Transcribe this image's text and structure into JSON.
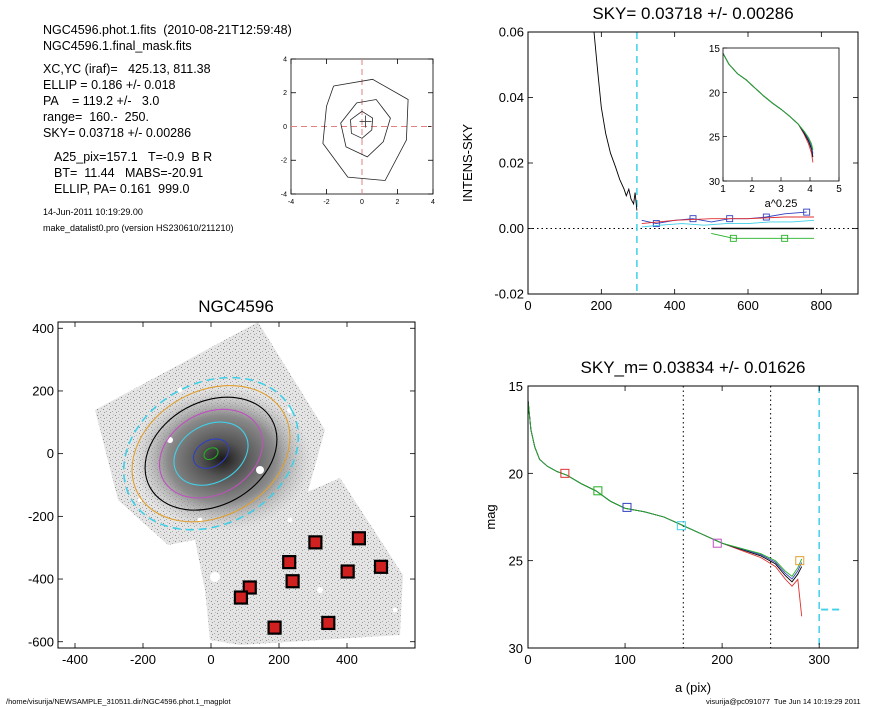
{
  "header": {
    "line1": "NGC4596.phot.1.fits  (2010-08-21T12:59:48)",
    "line2": "NGC4596.1.final_mask.fits",
    "xcyc": "XC,YC (iraf)=   425.13, 811.38",
    "ellip": "ELLIP = 0.186 +/- 0.018",
    "pa": "PA    = 119.2 +/-   3.0",
    "range": "range=  160.-  250.",
    "sky": "SKY= 0.03718 +/- 0.00286",
    "a25": "A25_pix=157.1   T=-0.9  B R",
    "bt": "BT=  11.44   MABS=-20.91",
    "ellip_pa": "ELLIP, PA= 0.161  999.0",
    "date": "14-Jun-2011 10:19:29.00",
    "prog": "make_datalist0.pro (version HS230610/211210)"
  },
  "footer": {
    "path": "/home/visurija/NEWSAMPLE_310511.dir/NGC4596.phot.1_magplot",
    "user": "visurija@pc091077  Tue Jun 14 10:19:29 2011"
  },
  "colors": {
    "black": "#000000",
    "red": "#e03030",
    "green": "#22b022",
    "blue": "#3040c0",
    "cyan": "#40d0e8",
    "magenta": "#c050c0",
    "orange": "#e0a030",
    "pink": "#e08080"
  },
  "chart_data": [
    {
      "id": "center",
      "type": "line",
      "title": "",
      "xlim": [
        -4,
        4
      ],
      "ylim": [
        -4,
        4
      ],
      "xticks": [
        -4,
        -2,
        0,
        2,
        4
      ],
      "yticks": [
        -4,
        -2,
        0,
        2,
        4
      ],
      "xtick_labels": [
        "-4",
        "-2",
        "0",
        "2",
        "4"
      ],
      "ytick_labels": [
        "-4",
        "-2",
        "0",
        "2",
        "4"
      ],
      "contours": [
        [
          [
            0,
            0.9
          ],
          [
            0.6,
            0.5
          ],
          [
            0.55,
            -0.2
          ],
          [
            0,
            -0.7
          ],
          [
            -0.6,
            -0.4
          ],
          [
            -0.65,
            0.4
          ],
          [
            0,
            0.9
          ]
        ],
        [
          [
            -0.3,
            1.4
          ],
          [
            0.8,
            1.6
          ],
          [
            1.6,
            0.5
          ],
          [
            1.2,
            -0.9
          ],
          [
            0.3,
            -1.8
          ],
          [
            -0.9,
            -1.2
          ],
          [
            -1.2,
            0.2
          ],
          [
            -0.3,
            1.4
          ]
        ],
        [
          [
            -1.6,
            2.4
          ],
          [
            0.6,
            2.8
          ],
          [
            2.6,
            1.6
          ],
          [
            2.5,
            -0.8
          ],
          [
            1.3,
            -3.2
          ],
          [
            -0.8,
            -3.0
          ],
          [
            -2.2,
            -1.0
          ],
          [
            -2.0,
            1.2
          ],
          [
            -1.6,
            2.4
          ]
        ]
      ],
      "marker": [
        0.2,
        0.3
      ]
    },
    {
      "id": "image",
      "type": "scatter",
      "title": "NGC4596",
      "xlim": [
        -450,
        600
      ],
      "ylim": [
        -620,
        420
      ],
      "xticks": [
        -400,
        -200,
        0,
        200,
        400
      ],
      "yticks": [
        -600,
        -400,
        -200,
        0,
        200,
        400
      ],
      "xtick_labels": [
        "-400",
        "-200",
        "0",
        "200",
        "400"
      ],
      "ytick_labels": [
        "-600",
        "-400",
        "-200",
        "0",
        "200",
        "400"
      ],
      "ellipses": [
        {
          "a": 22,
          "b": 17,
          "pa": 119,
          "color": "green"
        },
        {
          "a": 55,
          "b": 42,
          "pa": 119,
          "color": "blue"
        },
        {
          "a": 115,
          "b": 92,
          "pa": 119,
          "color": "cyan"
        },
        {
          "a": 160,
          "b": 130,
          "pa": 119,
          "color": "magenta"
        },
        {
          "a": 205,
          "b": 165,
          "pa": 119,
          "color": "black"
        },
        {
          "a": 245,
          "b": 200,
          "pa": 119,
          "color": "orange"
        },
        {
          "a": 270,
          "b": 225,
          "pa": 119,
          "color": "cyan"
        }
      ],
      "boxes": [
        [
          307,
          -283
        ],
        [
          435,
          -270
        ],
        [
          230,
          -346
        ],
        [
          500,
          -361
        ],
        [
          402,
          -376
        ],
        [
          240,
          -407
        ],
        [
          114,
          -427
        ],
        [
          88,
          -459
        ],
        [
          345,
          -540
        ],
        [
          187,
          -555
        ]
      ]
    },
    {
      "id": "intens",
      "type": "line",
      "title": "SKY= 0.03718 +/- 0.00286",
      "ylabel": "INTENS-SKY",
      "xlim": [
        0,
        900
      ],
      "ylim": [
        -0.02,
        0.06
      ],
      "xticks": [
        0,
        200,
        400,
        600,
        800
      ],
      "yticks": [
        -0.02,
        0.0,
        0.02,
        0.04,
        0.06
      ],
      "xtick_labels": [
        "0",
        "200",
        "400",
        "600",
        "800"
      ],
      "ytick_labels": [
        "-0.02",
        "0.00",
        "0.02",
        "0.04",
        "0.06"
      ],
      "vline": 297,
      "series": [
        {
          "color": "black",
          "x": [
            180,
            190,
            200,
            212,
            225,
            238,
            250,
            262,
            268,
            275,
            281,
            288,
            292,
            297
          ],
          "y": [
            0.06,
            0.048,
            0.037,
            0.029,
            0.023,
            0.019,
            0.015,
            0.012,
            0.01,
            0.012,
            0.009,
            0.0075,
            0.011,
            0.0055
          ]
        },
        {
          "color": "blue",
          "x": [
            310,
            350,
            400,
            450,
            500,
            550,
            600,
            650,
            700,
            760
          ],
          "y": [
            0.0025,
            0.0015,
            0.0025,
            0.003,
            0.002,
            0.003,
            0.003,
            0.0035,
            0.0045,
            0.005
          ]
        },
        {
          "color": "cyan",
          "x": [
            310,
            360,
            420,
            480,
            540,
            600,
            660,
            720,
            780
          ],
          "y": [
            0.0005,
            0.001,
            0.0015,
            0.001,
            0.0015,
            0.0015,
            0.002,
            0.002,
            0.0025
          ]
        },
        {
          "color": "red",
          "x": [
            310,
            400,
            500,
            600,
            700,
            780
          ],
          "y": [
            0.0015,
            0.0025,
            0.003,
            0.003,
            0.0035,
            0.0035
          ]
        },
        {
          "color": "black",
          "x": [
            500,
            780
          ],
          "y": [
            0.0,
            0.0
          ]
        },
        {
          "color": "green",
          "x": [
            500,
            560,
            620,
            700,
            780
          ],
          "y": [
            -0.0015,
            -0.003,
            -0.003,
            -0.003,
            -0.003
          ]
        }
      ],
      "inset": {
        "xlabel": "a^0.25",
        "xlim": [
          1,
          5
        ],
        "ylim": [
          15,
          30
        ],
        "xticks": [
          1,
          2,
          3,
          4,
          5
        ],
        "yticks": [
          15,
          20,
          25,
          30
        ],
        "xtick_labels": [
          "1",
          "2",
          "3",
          "4",
          "5"
        ],
        "ytick_labels": [
          "15",
          "20",
          "25",
          "30"
        ],
        "x": [
          1.0,
          1.2,
          1.5,
          1.8,
          2.1,
          2.4,
          2.7,
          3.0,
          3.3,
          3.6,
          3.8,
          3.95,
          4.05,
          4.1
        ],
        "y": [
          15.6,
          16.8,
          17.9,
          18.6,
          19.5,
          20.4,
          21.2,
          21.9,
          22.7,
          23.6,
          24.4,
          25.1,
          25.8,
          26.5
        ]
      }
    },
    {
      "id": "mag",
      "type": "line",
      "title": "SKY_m=  0.03834 +/- 0.01626",
      "xlabel": "a (pix)",
      "ylabel": "mag",
      "xlim": [
        0,
        340
      ],
      "ylim": [
        15,
        30
      ],
      "xticks": [
        0,
        100,
        200,
        300
      ],
      "yticks": [
        15,
        20,
        25,
        30
      ],
      "xtick_labels": [
        "0",
        "100",
        "200",
        "300"
      ],
      "ytick_labels": [
        "15",
        "20",
        "25",
        "30"
      ],
      "vlines_dotted": [
        160,
        250
      ],
      "vline_dashed": 300,
      "sky_segment": {
        "x": [
          302,
          322
        ],
        "y": 27.8
      },
      "x": [
        0,
        3,
        7,
        12,
        20,
        30,
        40,
        55,
        70,
        85,
        100,
        120,
        140,
        160,
        180,
        200,
        220,
        240,
        255,
        265,
        272,
        278,
        282
      ],
      "y": [
        15.8,
        17.5,
        18.5,
        19.2,
        19.6,
        19.9,
        20.1,
        20.6,
        21.0,
        21.6,
        22.0,
        22.2,
        22.5,
        23.0,
        23.5,
        24.0,
        24.3,
        24.6,
        25.0,
        25.6,
        25.9,
        25.4,
        24.9
      ],
      "squares": [
        {
          "x": 38,
          "y": 20.0,
          "color": "red"
        },
        {
          "x": 72,
          "y": 21.0,
          "color": "green"
        },
        {
          "x": 102,
          "y": 21.95,
          "color": "blue"
        },
        {
          "x": 158,
          "y": 23.0,
          "color": "cyan"
        },
        {
          "x": 195,
          "y": 24.0,
          "color": "magenta"
        },
        {
          "x": 280,
          "y": 25.0,
          "color": "orange"
        }
      ]
    }
  ]
}
